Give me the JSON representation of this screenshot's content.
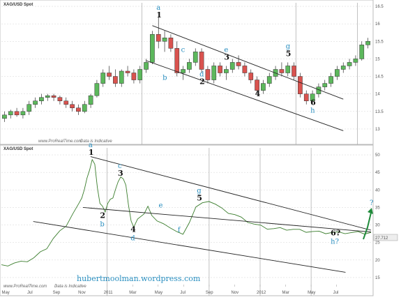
{
  "chart_data": [
    {
      "type": "candlestick",
      "title": "XAG/USD Spot",
      "ylim": [
        12.7,
        16.6
      ],
      "y_ticks": [
        "16.5",
        "16",
        "15.5",
        "15",
        "14.5",
        "14",
        "13.5",
        "13"
      ],
      "grid": true,
      "candles": [
        [
          13.3,
          13.5,
          13.2,
          13.4
        ],
        [
          13.4,
          13.55,
          13.3,
          13.5
        ],
        [
          13.5,
          13.6,
          13.35,
          13.4
        ],
        [
          13.4,
          13.6,
          13.3,
          13.5
        ],
        [
          13.5,
          13.8,
          13.4,
          13.7
        ],
        [
          13.7,
          13.9,
          13.6,
          13.8
        ],
        [
          13.8,
          14.0,
          13.7,
          13.9
        ],
        [
          13.9,
          14.0,
          13.8,
          13.95
        ],
        [
          13.95,
          14.0,
          13.8,
          13.9
        ],
        [
          13.9,
          13.95,
          13.7,
          13.8
        ],
        [
          13.8,
          13.9,
          13.6,
          13.7
        ],
        [
          13.7,
          13.8,
          13.5,
          13.6
        ],
        [
          13.6,
          13.7,
          13.4,
          13.5
        ],
        [
          13.5,
          13.8,
          13.45,
          13.7
        ],
        [
          13.7,
          14.0,
          13.6,
          13.95
        ],
        [
          13.95,
          14.4,
          13.9,
          14.3
        ],
        [
          14.3,
          14.7,
          14.2,
          14.6
        ],
        [
          14.6,
          14.8,
          14.4,
          14.5
        ],
        [
          14.5,
          14.7,
          14.2,
          14.3
        ],
        [
          14.3,
          14.7,
          14.2,
          14.65
        ],
        [
          14.65,
          14.8,
          14.5,
          14.6
        ],
        [
          14.6,
          14.7,
          14.3,
          14.4
        ],
        [
          14.4,
          14.8,
          14.3,
          14.7
        ],
        [
          14.7,
          15.0,
          14.6,
          14.9
        ],
        [
          14.9,
          15.8,
          14.85,
          15.7
        ],
        [
          15.7,
          16.2,
          15.3,
          15.5
        ],
        [
          15.5,
          15.8,
          15.2,
          15.6
        ],
        [
          15.6,
          15.7,
          15.2,
          15.3
        ],
        [
          15.3,
          15.5,
          14.5,
          14.6
        ],
        [
          14.6,
          14.8,
          14.4,
          14.7
        ],
        [
          14.7,
          15.0,
          14.6,
          14.9
        ],
        [
          14.9,
          15.3,
          14.8,
          15.2
        ],
        [
          15.2,
          15.3,
          14.6,
          14.7
        ],
        [
          14.7,
          14.8,
          14.3,
          14.4
        ],
        [
          14.4,
          14.9,
          14.3,
          14.8
        ],
        [
          14.8,
          14.9,
          14.5,
          14.6
        ],
        [
          14.6,
          14.8,
          14.4,
          14.7
        ],
        [
          14.7,
          15.0,
          14.6,
          14.9
        ],
        [
          14.9,
          15.1,
          14.7,
          14.8
        ],
        [
          14.8,
          14.9,
          14.5,
          14.6
        ],
        [
          14.6,
          14.7,
          14.3,
          14.4
        ],
        [
          14.4,
          14.5,
          14.0,
          14.1
        ],
        [
          14.1,
          14.4,
          14.0,
          14.3
        ],
        [
          14.3,
          14.6,
          14.2,
          14.5
        ],
        [
          14.5,
          14.8,
          14.4,
          14.7
        ],
        [
          14.7,
          14.9,
          14.5,
          14.6
        ],
        [
          14.6,
          14.9,
          14.5,
          14.8
        ],
        [
          14.8,
          14.9,
          14.4,
          14.5
        ],
        [
          14.5,
          14.6,
          13.9,
          14.0
        ],
        [
          14.0,
          14.1,
          13.7,
          13.8
        ],
        [
          13.8,
          14.1,
          13.7,
          14.0
        ],
        [
          14.0,
          14.3,
          13.9,
          14.2
        ],
        [
          14.2,
          14.4,
          14.1,
          14.3
        ],
        [
          14.3,
          14.6,
          14.2,
          14.5
        ],
        [
          14.5,
          14.8,
          14.4,
          14.7
        ],
        [
          14.7,
          14.9,
          14.6,
          14.8
        ],
        [
          14.8,
          15.0,
          14.7,
          14.9
        ],
        [
          14.9,
          15.1,
          14.8,
          15.0
        ],
        [
          15.0,
          15.5,
          14.95,
          15.4
        ],
        [
          15.4,
          15.6,
          15.3,
          15.5
        ]
      ],
      "channel": [
        {
          "from": [
            24,
            15.95
          ],
          "to": [
            55,
            13.85
          ]
        },
        {
          "from": [
            23,
            14.95
          ],
          "to": [
            55,
            12.95
          ]
        }
      ],
      "wave_labels": [
        {
          "number": "1",
          "letter": "a",
          "at": [
            25,
            16.2
          ]
        },
        {
          "number": "2",
          "letter": "d",
          "at": [
            32,
            14.3
          ]
        },
        {
          "number": "3",
          "letter": "e",
          "at": [
            36,
            15.0
          ]
        },
        {
          "number": "4",
          "letter": "",
          "at": [
            41,
            13.95
          ]
        },
        {
          "number": "5",
          "letter": "g",
          "at": [
            46,
            15.1
          ]
        },
        {
          "number": "6",
          "letter": "h",
          "at": [
            50,
            13.7
          ]
        }
      ],
      "extra_letters": [
        {
          "letter": "b",
          "at": [
            26,
            14.4
          ]
        },
        {
          "letter": "c",
          "at": [
            29,
            15.2
          ]
        }
      ],
      "source": "www.ProRealTime.com",
      "note": "Data is Indicative"
    },
    {
      "type": "line",
      "title": "XAG/USD Spot",
      "ylim": [
        13,
        52
      ],
      "y_ticks": [
        "50",
        "45",
        "40",
        "35",
        "30",
        "25",
        "20",
        "15"
      ],
      "x_ticks": [
        "May",
        "Jul",
        "Sep",
        "Nov",
        "2011",
        "Mar",
        "May",
        "Jul",
        "Sep",
        "Nov",
        "2012",
        "Mar",
        "May",
        "Jul"
      ],
      "last_value": "27.712",
      "grid": true,
      "series": [
        {
          "x": [
            0,
            0.5,
            1,
            1.5,
            2,
            2.5,
            3,
            3.5,
            4,
            4.5,
            5,
            5.5,
            6,
            6.2,
            6.4,
            6.6,
            6.8,
            7,
            7.2,
            7.4,
            7.6,
            7.8,
            8,
            8.2,
            8.4,
            8.6,
            8.8,
            9,
            9.2,
            9.4,
            9.6,
            9.8,
            10,
            10.2,
            10.5,
            11,
            11.3,
            11.6,
            12,
            12.5,
            13,
            13.5,
            14,
            14.5,
            15,
            15.5,
            16,
            16.5,
            17,
            17.5,
            18,
            18.5,
            19,
            19.5,
            20,
            20.5,
            21,
            21.5,
            22,
            22.5,
            23,
            23.5,
            24,
            24.5,
            25,
            25.5,
            26,
            26.5,
            27,
            27.5,
            28,
            28.5
          ],
          "values": [
            18.3,
            18.6,
            19.0,
            19.3,
            19.8,
            20.5,
            22,
            23.5,
            26,
            28,
            30,
            33,
            36,
            38,
            40,
            43,
            46,
            48.5,
            47,
            41,
            36,
            35,
            34,
            36,
            37,
            38,
            40,
            42,
            44,
            43,
            41,
            36,
            31,
            29,
            32,
            33,
            35,
            33,
            31,
            30,
            29.5,
            28,
            27,
            31,
            35,
            36,
            37,
            35.8,
            34.5,
            33.6,
            32.8,
            31.9,
            31,
            30.1,
            29.6,
            29.1,
            28.8,
            28.9,
            28.8,
            28.6,
            28.4,
            28.2,
            28.0,
            27.9,
            27.8,
            27.712,
            27.7,
            27.8,
            27.7,
            27.8,
            27.7,
            27.712
          ]
        }
      ],
      "channel": [
        {
          "from": [
            6.4,
            35
          ],
          "to": [
            29,
            28
          ]
        },
        {
          "from": [
            2.5,
            31
          ],
          "to": [
            27,
            16.5
          ]
        }
      ],
      "wave_labels": [
        {
          "number": "1",
          "letter": "a",
          "at": [
            7,
            50
          ]
        },
        {
          "number": "2",
          "letter": "b",
          "at": [
            7.9,
            32
          ]
        },
        {
          "number": "3",
          "letter": "c",
          "at": [
            9.3,
            44
          ]
        },
        {
          "number": "4",
          "letter": "d",
          "at": [
            10.3,
            28
          ]
        },
        {
          "number": "5",
          "letter": "g",
          "at": [
            15.5,
            37
          ]
        },
        {
          "number": "6?",
          "letter": "h?",
          "at": [
            26,
            27
          ]
        }
      ],
      "extra_letters": [
        {
          "letter": "e",
          "at": [
            12.5,
            35
          ]
        },
        {
          "letter": "f",
          "at": [
            14,
            28
          ]
        }
      ],
      "question_mark": "?",
      "source": "www.ProRealTime.com",
      "note": "Data is Indicative"
    }
  ],
  "watermark": "hubertmoolman.wordpress.com"
}
